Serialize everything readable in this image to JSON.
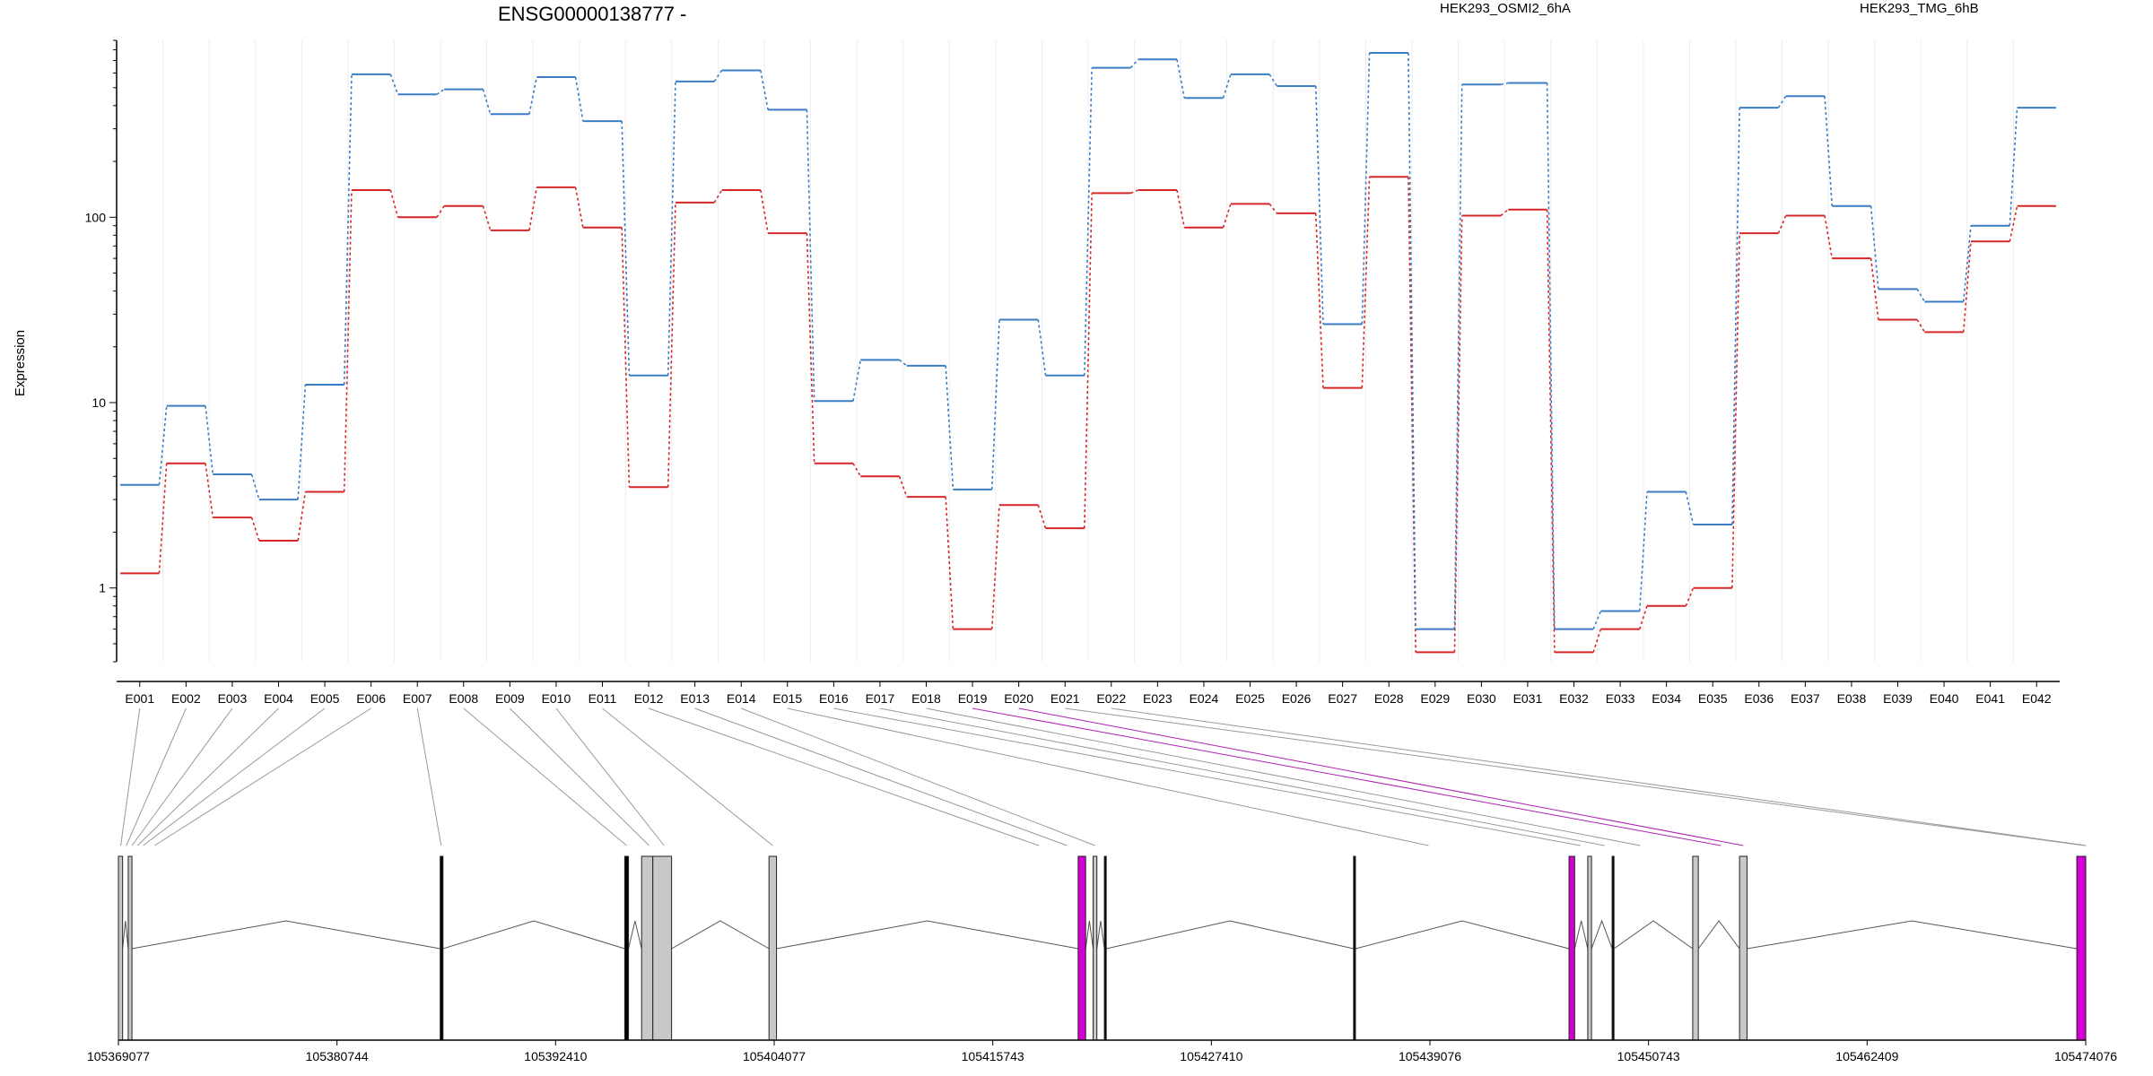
{
  "chart_data": {
    "type": "line",
    "title": "ENSG00000138777 -",
    "ylabel": "Expression",
    "yscale": "log",
    "ylim": [
      0.4,
      900
    ],
    "y_ticks": [
      "1",
      "10",
      "100"
    ],
    "y_tick_values": [
      1,
      10,
      100
    ],
    "categories": [
      "E001",
      "E002",
      "E003",
      "E004",
      "E005",
      "E006",
      "E007",
      "E008",
      "E009",
      "E010",
      "E011",
      "E012",
      "E013",
      "E014",
      "E015",
      "E016",
      "E017",
      "E018",
      "E019",
      "E020",
      "E021",
      "E022",
      "E023",
      "E024",
      "E025",
      "E026",
      "E027",
      "E028",
      "E029",
      "E030",
      "E031",
      "E032",
      "E033",
      "E034",
      "E035",
      "E036",
      "E037",
      "E038",
      "E039",
      "E040",
      "E041",
      "E042"
    ],
    "series": [
      {
        "name": "HEK293_OSMI2_6hA",
        "color": "#d62728",
        "values": [
          1.2,
          4.7,
          2.4,
          1.8,
          3.3,
          140,
          100,
          115,
          85,
          145,
          88,
          3.5,
          120,
          140,
          82,
          4.7,
          4,
          3.1,
          0.6,
          2.8,
          2.1,
          135,
          140,
          88,
          118,
          105,
          12,
          165,
          0.45,
          102,
          110,
          0.45,
          0.6,
          0.8,
          1,
          82,
          102,
          60,
          28,
          24,
          74,
          115
        ]
      },
      {
        "name": "HEK293_TMG_6hB",
        "color": "#3a7dc4",
        "values": [
          3.6,
          9.6,
          4.1,
          3,
          12.5,
          590,
          460,
          490,
          360,
          570,
          330,
          14,
          540,
          620,
          380,
          10.2,
          17,
          15.8,
          3.4,
          28,
          14,
          640,
          710,
          440,
          590,
          510,
          26.5,
          770,
          0.6,
          520,
          530,
          0.6,
          0.75,
          3.3,
          2.2,
          390,
          450,
          115,
          41,
          35,
          90,
          390
        ]
      }
    ],
    "gene_axis": {
      "tick_labels": [
        "105369077",
        "105380744",
        "105392410",
        "105404077",
        "105415743",
        "105427410",
        "105439076",
        "105450743",
        "105462409",
        "105474076"
      ],
      "start": 105369077,
      "end": 105474076
    },
    "exon_link_colors": [
      "gray",
      "gray",
      "gray",
      "gray",
      "gray",
      "gray",
      "gray",
      "gray",
      "gray",
      "gray",
      "gray",
      "gray",
      "gray",
      "gray",
      "gray",
      "gray",
      "gray",
      "gray",
      "purple",
      "purple",
      "gray",
      "gray",
      "purple",
      "purple",
      "gray",
      "gray",
      "gray",
      "purple",
      "gray",
      "purple",
      "gray",
      "gray",
      "gray",
      "gray",
      "gray",
      "gray",
      "gray",
      "purple",
      "purple",
      "purple",
      "purple",
      "gray"
    ],
    "exon_genomic_positions": [
      105369200,
      105369500,
      105369800,
      105370100,
      105370400,
      105371000,
      105386300,
      105396200,
      105397400,
      105398200,
      105404000,
      105418200,
      105419700,
      105421200,
      105439000,
      105447100,
      105448400,
      105450300,
      105454600,
      105455800,
      105474000,
      105474100
    ],
    "exon_map_blocks": [
      {
        "start": 105369077,
        "end": 105369300,
        "type": "gray"
      },
      {
        "start": 105369600,
        "end": 105369800,
        "type": "gray"
      },
      {
        "start": 105386250,
        "end": 105386400,
        "type": "black"
      },
      {
        "start": 105396100,
        "end": 105396300,
        "type": "black"
      },
      {
        "start": 105397000,
        "end": 105397600,
        "type": "gray"
      },
      {
        "start": 105397600,
        "end": 105398600,
        "type": "gray"
      },
      {
        "start": 105403800,
        "end": 105404200,
        "type": "gray"
      },
      {
        "start": 105420300,
        "end": 105420700,
        "type": "magenta"
      },
      {
        "start": 105421100,
        "end": 105421300,
        "type": "gray"
      },
      {
        "start": 105421700,
        "end": 105421800,
        "type": "black"
      },
      {
        "start": 105435000,
        "end": 105435100,
        "type": "black"
      },
      {
        "start": 105446500,
        "end": 105446800,
        "type": "magenta"
      },
      {
        "start": 105447500,
        "end": 105447700,
        "type": "gray"
      },
      {
        "start": 105448800,
        "end": 105448900,
        "type": "black"
      },
      {
        "start": 105453100,
        "end": 105453400,
        "type": "gray"
      },
      {
        "start": 105455600,
        "end": 105456000,
        "type": "gray"
      },
      {
        "start": 105473600,
        "end": 105474076,
        "type": "magenta"
      }
    ]
  },
  "colors": {
    "series_a": "#d62728",
    "series_b": "#3a7dc4",
    "highlight": "#d300d3",
    "exon_gray": "#c8c8c8",
    "link_gray": "#999999",
    "link_purple": "#b020b0"
  }
}
